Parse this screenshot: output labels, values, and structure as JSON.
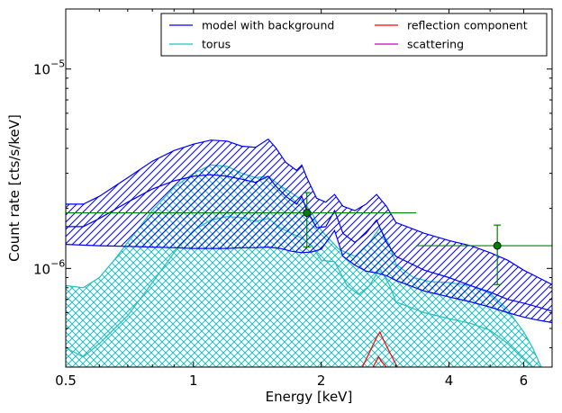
{
  "chart_data": {
    "type": "area",
    "xlabel": "Energy [keV]",
    "ylabel": "Count rate [cts/s/keV]",
    "xscale": "log",
    "yscale": "log",
    "xlim": [
      0.5,
      7.0
    ],
    "ylim": [
      3.2e-07,
      2e-05
    ],
    "grid": false,
    "legend_position": "top-right",
    "x_ticks": [
      {
        "value": 0.5,
        "label": "0.5"
      },
      {
        "value": 1,
        "label": "1"
      },
      {
        "value": 2,
        "label": "2"
      },
      {
        "value": 4,
        "label": "4"
      },
      {
        "value": 6,
        "label": "6"
      }
    ],
    "y_ticks": [
      {
        "value": 1e-06,
        "base": "10",
        "exp": "−6"
      },
      {
        "value": 1e-05,
        "base": "10",
        "exp": "−5"
      }
    ],
    "legend": [
      {
        "label": "model with background",
        "color": "#0000ff"
      },
      {
        "label": "torus",
        "color": "#20c0c0"
      },
      {
        "label": "reflection component",
        "color": "#ff0000"
      },
      {
        "label": "scattering",
        "color": "#c000c0"
      }
    ],
    "series": [
      {
        "name": "model with background",
        "color": "#0000ff",
        "band": true,
        "hatch": "diagonal",
        "upper": [
          [
            0.5,
            2.1e-06
          ],
          [
            0.55,
            2.1e-06
          ],
          [
            0.6,
            2.3e-06
          ],
          [
            0.7,
            2.85e-06
          ],
          [
            0.8,
            3.45e-06
          ],
          [
            0.9,
            3.9e-06
          ],
          [
            1.0,
            4.2e-06
          ],
          [
            1.1,
            4.4e-06
          ],
          [
            1.2,
            4.35e-06
          ],
          [
            1.3,
            4.1e-06
          ],
          [
            1.4,
            4.05e-06
          ],
          [
            1.5,
            4.45e-06
          ],
          [
            1.56,
            4.05e-06
          ],
          [
            1.65,
            3.4e-06
          ],
          [
            1.75,
            3.1e-06
          ],
          [
            1.8,
            3.3e-06
          ],
          [
            1.85,
            2.85e-06
          ],
          [
            1.95,
            2.25e-06
          ],
          [
            2.05,
            2.15e-06
          ],
          [
            2.15,
            2.35e-06
          ],
          [
            2.25,
            2.05e-06
          ],
          [
            2.4,
            1.95e-06
          ],
          [
            2.55,
            2.1e-06
          ],
          [
            2.7,
            2.35e-06
          ],
          [
            2.85,
            2.05e-06
          ],
          [
            3.0,
            1.7e-06
          ],
          [
            3.5,
            1.5e-06
          ],
          [
            4.0,
            1.38e-06
          ],
          [
            4.5,
            1.3e-06
          ],
          [
            5.0,
            1.2e-06
          ],
          [
            5.5,
            1.1e-06
          ],
          [
            6.0,
            9.8e-07
          ],
          [
            6.5,
            9e-07
          ],
          [
            7.0,
            8.3e-07
          ]
        ],
        "middle": [
          [
            0.5,
            1.62e-06
          ],
          [
            0.55,
            1.62e-06
          ],
          [
            0.6,
            1.78e-06
          ],
          [
            0.7,
            2.15e-06
          ],
          [
            0.8,
            2.5e-06
          ],
          [
            0.9,
            2.75e-06
          ],
          [
            1.0,
            2.9e-06
          ],
          [
            1.1,
            2.95e-06
          ],
          [
            1.2,
            2.9e-06
          ],
          [
            1.3,
            2.8e-06
          ],
          [
            1.4,
            2.7e-06
          ],
          [
            1.5,
            2.9e-06
          ],
          [
            1.56,
            2.6e-06
          ],
          [
            1.65,
            2.3e-06
          ],
          [
            1.75,
            2.1e-06
          ],
          [
            1.8,
            2.3e-06
          ],
          [
            1.85,
            1.95e-06
          ],
          [
            1.95,
            1.6e-06
          ],
          [
            2.05,
            1.62e-06
          ],
          [
            2.15,
            1.95e-06
          ],
          [
            2.25,
            1.5e-06
          ],
          [
            2.4,
            1.35e-06
          ],
          [
            2.55,
            1.5e-06
          ],
          [
            2.7,
            1.75e-06
          ],
          [
            2.85,
            1.35e-06
          ],
          [
            3.0,
            1.15e-06
          ],
          [
            3.5,
            9.8e-07
          ],
          [
            4.0,
            9e-07
          ],
          [
            4.5,
            8.2e-07
          ],
          [
            5.0,
            7.6e-07
          ],
          [
            5.5,
            7e-07
          ],
          [
            6.0,
            6.7e-07
          ],
          [
            6.5,
            6.4e-07
          ],
          [
            7.0,
            6.1e-07
          ]
        ],
        "lower": [
          [
            0.5,
            1.32e-06
          ],
          [
            0.6,
            1.3e-06
          ],
          [
            0.7,
            1.29e-06
          ],
          [
            0.8,
            1.28e-06
          ],
          [
            0.9,
            1.27e-06
          ],
          [
            1.0,
            1.26e-06
          ],
          [
            1.1,
            1.26e-06
          ],
          [
            1.2,
            1.26e-06
          ],
          [
            1.3,
            1.27e-06
          ],
          [
            1.4,
            1.27e-06
          ],
          [
            1.5,
            1.28e-06
          ],
          [
            1.6,
            1.26e-06
          ],
          [
            1.7,
            1.22e-06
          ],
          [
            1.8,
            1.2e-06
          ],
          [
            1.9,
            1.21e-06
          ],
          [
            2.0,
            1.25e-06
          ],
          [
            2.15,
            1.55e-06
          ],
          [
            2.25,
            1.15e-06
          ],
          [
            2.4,
            1.04e-06
          ],
          [
            2.55,
            9.7e-07
          ],
          [
            2.7,
            9.5e-07
          ],
          [
            2.85,
            9.2e-07
          ],
          [
            3.0,
            8.7e-07
          ],
          [
            3.5,
            7.7e-07
          ],
          [
            4.0,
            7.2e-07
          ],
          [
            4.5,
            6.8e-07
          ],
          [
            5.0,
            6.4e-07
          ],
          [
            5.5,
            6e-07
          ],
          [
            6.0,
            5.7e-07
          ],
          [
            6.5,
            5.5e-07
          ],
          [
            7.0,
            5.35e-07
          ]
        ]
      },
      {
        "name": "torus",
        "color": "#20c0c0",
        "band": true,
        "hatch": "cross",
        "upper": [
          [
            0.5,
            8.2e-07
          ],
          [
            0.55,
            8e-07
          ],
          [
            0.6,
            9e-07
          ],
          [
            0.65,
            1.1e-06
          ],
          [
            0.7,
            1.35e-06
          ],
          [
            0.8,
            1.95e-06
          ],
          [
            0.9,
            2.55e-06
          ],
          [
            1.0,
            3e-06
          ],
          [
            1.1,
            3.3e-06
          ],
          [
            1.2,
            3.25e-06
          ],
          [
            1.3,
            3e-06
          ],
          [
            1.4,
            2.85e-06
          ],
          [
            1.5,
            2.9e-06
          ],
          [
            1.6,
            2.6e-06
          ],
          [
            1.7,
            2.4e-06
          ],
          [
            1.8,
            2.2e-06
          ],
          [
            1.9,
            1.9e-06
          ],
          [
            2.0,
            1.55e-06
          ],
          [
            2.2,
            1.25e-06
          ],
          [
            2.4,
            1.15e-06
          ],
          [
            2.6,
            1.35e-06
          ],
          [
            2.75,
            1.6e-06
          ],
          [
            2.9,
            1.3e-06
          ],
          [
            3.0,
            1.05e-06
          ],
          [
            3.3,
            9e-07
          ],
          [
            3.6,
            8.6e-07
          ],
          [
            4.0,
            8.5e-07
          ],
          [
            4.5,
            8.2e-07
          ],
          [
            5.0,
            7.5e-07
          ],
          [
            5.5,
            6.2e-07
          ],
          [
            6.0,
            4.8e-07
          ],
          [
            6.3,
            4e-07
          ],
          [
            6.6,
            3.2e-07
          ]
        ],
        "middle": [
          [
            0.5,
            4e-07
          ],
          [
            0.55,
            3.6e-07
          ],
          [
            0.6,
            4.2e-07
          ],
          [
            0.7,
            5.8e-07
          ],
          [
            0.8,
            8.5e-07
          ],
          [
            0.9,
            1.2e-06
          ],
          [
            1.0,
            1.55e-06
          ],
          [
            1.1,
            1.75e-06
          ],
          [
            1.2,
            1.82e-06
          ],
          [
            1.3,
            1.8e-06
          ],
          [
            1.4,
            1.72e-06
          ],
          [
            1.5,
            1.78e-06
          ],
          [
            1.6,
            1.6e-06
          ],
          [
            1.7,
            1.5e-06
          ],
          [
            1.8,
            1.42e-06
          ],
          [
            1.9,
            1.3e-06
          ],
          [
            2.0,
            1.1e-06
          ],
          [
            2.15,
            1.08e-06
          ],
          [
            2.3,
            8.2e-07
          ],
          [
            2.45,
            7.4e-07
          ],
          [
            2.6,
            8.2e-07
          ],
          [
            2.75,
            1e-06
          ],
          [
            2.9,
            8.2e-07
          ],
          [
            3.0,
            6.8e-07
          ],
          [
            3.5,
            6e-07
          ],
          [
            4.0,
            5.6e-07
          ],
          [
            4.5,
            5.3e-07
          ],
          [
            5.0,
            4.9e-07
          ],
          [
            5.5,
            4.2e-07
          ],
          [
            6.0,
            3.5e-07
          ],
          [
            6.3,
            3.2e-07
          ]
        ],
        "lower": [
          [
            0.5,
            3.2e-07
          ],
          [
            0.7,
            3.2e-07
          ],
          [
            1.0,
            3.2e-07
          ],
          [
            2.0,
            3.2e-07
          ],
          [
            4.0,
            3.2e-07
          ],
          [
            6.6,
            3.2e-07
          ]
        ]
      },
      {
        "name": "reflection component",
        "color": "#ff0000",
        "band": false,
        "line": [
          [
            2.5,
            3.2e-07
          ],
          [
            2.6,
            3.8e-07
          ],
          [
            2.7,
            4.5e-07
          ],
          [
            2.75,
            4.8e-07
          ],
          [
            2.8,
            4.4e-07
          ],
          [
            2.9,
            3.8e-07
          ],
          [
            3.0,
            3.3e-07
          ],
          [
            3.02,
            3.2e-07
          ]
        ],
        "line_lower": [
          [
            2.65,
            3.2e-07
          ],
          [
            2.73,
            3.6e-07
          ],
          [
            2.78,
            3.4e-07
          ],
          [
            2.85,
            3.2e-07
          ]
        ]
      },
      {
        "name": "scattering",
        "color": "#c000c0",
        "band": false,
        "line": []
      },
      {
        "name": "data",
        "color": "#008000",
        "marker": "circle",
        "points": [
          {
            "x": 1.85,
            "y": 1.9e-06,
            "xerr": [
              0.5,
              3.35
            ],
            "yerr": [
              1.28e-06,
              2.4e-06
            ]
          },
          {
            "x": 5.2,
            "y": 1.3e-06,
            "xerr": [
              3.35,
              7.0
            ],
            "yerr": [
              8.3e-07,
              1.65e-06
            ]
          }
        ]
      }
    ]
  }
}
